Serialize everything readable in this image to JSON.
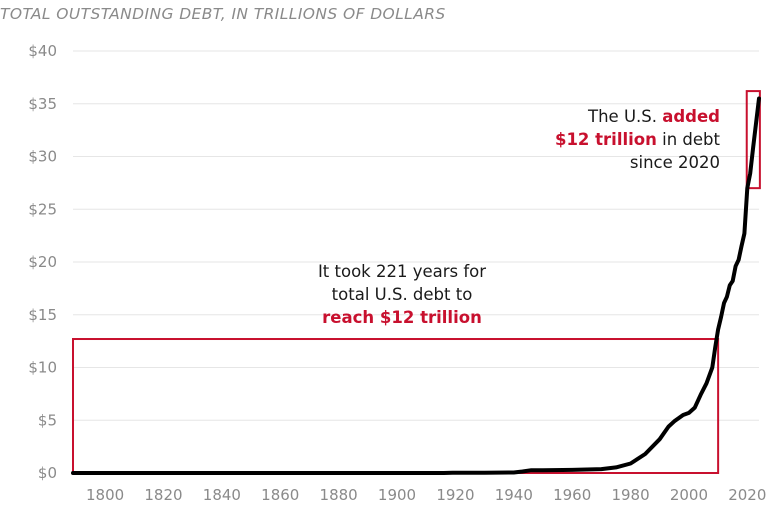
{
  "chart_data": {
    "type": "line",
    "subtitle": "TOTAL OUTSTANDING DEBT, IN TRILLIONS OF DOLLARS",
    "xlabel": "",
    "ylabel": "",
    "xlim": [
      1789,
      2024
    ],
    "ylim": [
      0,
      40
    ],
    "x_ticks": [
      1800,
      1820,
      1840,
      1860,
      1880,
      1900,
      1920,
      1940,
      1960,
      1980,
      2000,
      2020
    ],
    "y_ticks": [
      "$0",
      "$5",
      "$10",
      "$15",
      "$20",
      "$25",
      "$30",
      "$35",
      "$40"
    ],
    "y_tick_values": [
      0,
      5,
      10,
      15,
      20,
      25,
      30,
      35,
      40
    ],
    "grid": "horizontal",
    "series": [
      {
        "color": "#000000",
        "x": [
          1789,
          1800,
          1820,
          1840,
          1860,
          1880,
          1900,
          1916,
          1919,
          1930,
          1940,
          1943,
          1946,
          1950,
          1960,
          1970,
          1975,
          1980,
          1985,
          1990,
          1993,
          1995,
          1998,
          2000,
          2002,
          2004,
          2006,
          2008,
          2009,
          2010,
          2011,
          2012,
          2013,
          2014,
          2015,
          2016,
          2017,
          2018,
          2019,
          2020,
          2021,
          2022,
          2023,
          2024
        ],
        "y": [
          0.0,
          0.0,
          0.0,
          0.0,
          0.0,
          0.0,
          0.0,
          0.0,
          0.03,
          0.02,
          0.05,
          0.14,
          0.27,
          0.26,
          0.29,
          0.37,
          0.53,
          0.9,
          1.8,
          3.2,
          4.4,
          4.9,
          5.5,
          5.7,
          6.2,
          7.4,
          8.5,
          10.0,
          11.9,
          13.6,
          14.8,
          16.1,
          16.7,
          17.8,
          18.2,
          19.6,
          20.2,
          21.5,
          22.7,
          27.0,
          28.4,
          30.9,
          33.2,
          35.5
        ]
      }
    ],
    "annotations": {
      "left": {
        "lines": [
          "It took 221 years for",
          "total U.S. debt to"
        ],
        "highlight": "reach $12 trillion"
      },
      "right": {
        "line1_plain": "The U.S. ",
        "line1_highlight": "added",
        "line2_highlight": "$12 trillion",
        "line2_plain": " in debt",
        "line3_plain": "since 2020"
      }
    },
    "colors": {
      "line": "#000000",
      "highlight": "#c8102e",
      "grid": "#e6e6e6",
      "tick_text": "#8a8a8a"
    }
  }
}
